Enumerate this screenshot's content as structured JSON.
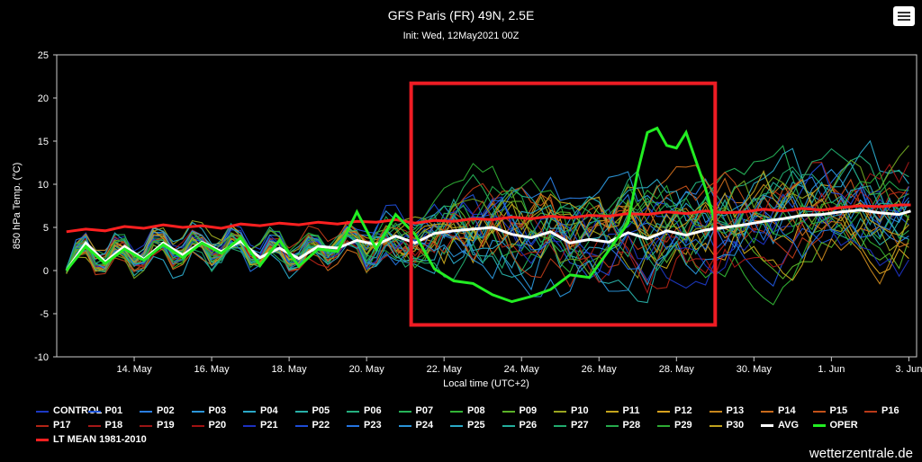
{
  "header": {
    "title": "GFS Paris (FR) 49N, 2.5E",
    "subtitle": "Init: Wed, 12May2021 00Z",
    "menu_icon": "hamburger-menu-icon"
  },
  "credit": "wetterzentrale.de",
  "chart_data": {
    "type": "line",
    "title": "GFS Paris (FR) 49N, 2.5E",
    "subtitle": "Init: Wed, 12May2021 00Z",
    "xlabel": "Local time (UTC+2)",
    "ylabel": "850 hPa Temp. (°C)",
    "xlim": [
      12.0,
      34.2
    ],
    "ylim": [
      -10,
      25
    ],
    "yticks": [
      -10,
      -5,
      0,
      5,
      10,
      15,
      20,
      25
    ],
    "xticks": [
      {
        "x": 14,
        "label": "14. May"
      },
      {
        "x": 16,
        "label": "16. May"
      },
      {
        "x": 18,
        "label": "18. May"
      },
      {
        "x": 20,
        "label": "20. May"
      },
      {
        "x": 22,
        "label": "22. May"
      },
      {
        "x": 24,
        "label": "24. May"
      },
      {
        "x": 26,
        "label": "26. May"
      },
      {
        "x": 28,
        "label": "28. May"
      },
      {
        "x": 30,
        "label": "30. May"
      },
      {
        "x": 32,
        "label": "1. Jun"
      },
      {
        "x": 34,
        "label": "3. Jun"
      }
    ],
    "grid": false,
    "legend_position": "bottom",
    "ensemble_colors": [
      "#1c39c4",
      "#1f54d6",
      "#2a7de0",
      "#2b96d8",
      "#2aa8c8",
      "#28b0a8",
      "#25b07f",
      "#26b358",
      "#32b335",
      "#5ab128",
      "#9aa520",
      "#c4a41c",
      "#d7a11f",
      "#c7861c",
      "#c86a1b",
      "#c35119",
      "#ba3a18",
      "#b22416",
      "#a51818",
      "#1c31c0",
      "#1d4cd6",
      "#2474e0",
      "#2a93d8",
      "#2aa9c6",
      "#22ad9c",
      "#21ab6e",
      "#25aa4c",
      "#2daa33",
      "#70a622",
      "#c0a21d"
    ],
    "series": [
      {
        "name": "CONTROL",
        "color": "#1c39c4"
      },
      {
        "name": "P01",
        "color": "#1f54d6"
      },
      {
        "name": "P02",
        "color": "#2a7de0"
      },
      {
        "name": "P03",
        "color": "#2b96d8"
      },
      {
        "name": "P04",
        "color": "#2aa8c8"
      },
      {
        "name": "P05",
        "color": "#28b0a8"
      },
      {
        "name": "P06",
        "color": "#25b07f"
      },
      {
        "name": "P07",
        "color": "#26b358"
      },
      {
        "name": "P08",
        "color": "#32b335"
      },
      {
        "name": "P09",
        "color": "#5ab128"
      },
      {
        "name": "P10",
        "color": "#9aa520"
      },
      {
        "name": "P11",
        "color": "#c4a41c"
      },
      {
        "name": "P12",
        "color": "#d7a11f"
      },
      {
        "name": "P13",
        "color": "#c7861c"
      },
      {
        "name": "P14",
        "color": "#c86a1b"
      },
      {
        "name": "P15",
        "color": "#c35119"
      },
      {
        "name": "P16",
        "color": "#ba3a18"
      },
      {
        "name": "P17",
        "color": "#b22416"
      },
      {
        "name": "P18",
        "color": "#a51818"
      },
      {
        "name": "P19",
        "color": "#9b1515"
      },
      {
        "name": "P20",
        "color": "#a01212"
      },
      {
        "name": "P21",
        "color": "#1c31c0"
      },
      {
        "name": "P22",
        "color": "#1d4cd6"
      },
      {
        "name": "P23",
        "color": "#2474e0"
      },
      {
        "name": "P24",
        "color": "#2a93d8"
      },
      {
        "name": "P25",
        "color": "#2aa9c6"
      },
      {
        "name": "P26",
        "color": "#22ad9c"
      },
      {
        "name": "P27",
        "color": "#21ab6e"
      },
      {
        "name": "P28",
        "color": "#25aa4c"
      },
      {
        "name": "P29",
        "color": "#2daa33"
      },
      {
        "name": "P30",
        "color": "#c0a21d"
      },
      {
        "name": "AVG",
        "color": "#ffffff"
      },
      {
        "name": "OPER",
        "color": "#22ee22"
      },
      {
        "name": "LT MEAN 1981-2010",
        "color": "#ff2020"
      }
    ],
    "key_series": {
      "oper": {
        "x": [
          12.25,
          12.75,
          13.25,
          13.75,
          14.25,
          14.75,
          15.25,
          15.75,
          16.25,
          16.75,
          17.25,
          17.75,
          18.25,
          18.75,
          19.25,
          19.75,
          20.25,
          20.75,
          21.25,
          21.75,
          22.25,
          22.75,
          23.25,
          23.75,
          24.25,
          24.75,
          25.25,
          25.75,
          26.25,
          26.75,
          27.0,
          27.25,
          27.5,
          27.75,
          28.0,
          28.25,
          28.75,
          29.0
        ],
        "y": [
          0,
          2.8,
          0.8,
          2.5,
          1.2,
          3.0,
          1.5,
          3.2,
          2.0,
          3.8,
          0.6,
          3.5,
          0.5,
          2.5,
          2.2,
          6.8,
          2.5,
          6.5,
          4.2,
          0.2,
          -1.2,
          -1.5,
          -2.8,
          -3.6,
          -3.0,
          -2.2,
          -0.5,
          -0.8,
          2.3,
          5.5,
          11.5,
          16.0,
          16.5,
          14.5,
          14.2,
          16.0,
          9.5,
          5.5
        ]
      },
      "avg": {
        "x": [
          12.25,
          12.75,
          13.25,
          13.75,
          14.25,
          14.75,
          15.25,
          15.75,
          16.25,
          16.75,
          17.25,
          17.75,
          18.25,
          18.75,
          19.25,
          19.75,
          20.25,
          20.75,
          21.25,
          21.75,
          22.25,
          22.75,
          23.25,
          23.75,
          24.25,
          24.75,
          25.25,
          25.75,
          26.25,
          26.75,
          27.25,
          27.75,
          28.25,
          28.75,
          29.25,
          29.75,
          30.25,
          30.75,
          31.25,
          31.75,
          32.25,
          32.75,
          33.25,
          33.75,
          34.05
        ],
        "y": [
          0,
          3.2,
          1.0,
          2.8,
          1.3,
          3.2,
          1.8,
          3.3,
          2.2,
          3.4,
          1.5,
          2.6,
          1.4,
          2.8,
          2.6,
          3.5,
          3.0,
          4.0,
          3.2,
          4.3,
          4.6,
          4.8,
          5.0,
          4.2,
          3.8,
          4.5,
          3.2,
          3.6,
          3.3,
          4.4,
          3.7,
          4.6,
          4.1,
          4.7,
          5.0,
          5.3,
          5.7,
          6.0,
          6.4,
          6.5,
          6.8,
          7.0,
          6.7,
          6.5,
          6.9
        ]
      },
      "lt_mean": {
        "x": [
          12.25,
          12.75,
          13.25,
          13.75,
          14.25,
          14.75,
          15.25,
          15.75,
          16.25,
          16.75,
          17.25,
          17.75,
          18.25,
          18.75,
          19.25,
          19.75,
          20.25,
          20.75,
          21.25,
          21.75,
          22.25,
          22.75,
          23.25,
          23.75,
          24.25,
          24.75,
          25.25,
          25.75,
          26.25,
          26.75,
          27.25,
          27.75,
          28.25,
          28.75,
          29.25,
          29.75,
          30.25,
          30.75,
          31.25,
          31.75,
          32.25,
          32.75,
          33.25,
          33.75,
          34.05
        ],
        "y": [
          4.5,
          4.8,
          4.6,
          5.1,
          4.9,
          5.3,
          5.0,
          5.2,
          4.9,
          5.4,
          5.2,
          5.5,
          5.3,
          5.6,
          5.4,
          5.7,
          5.6,
          5.9,
          5.5,
          5.8,
          5.7,
          6.0,
          5.9,
          6.2,
          6.0,
          6.3,
          6.1,
          6.4,
          6.3,
          6.6,
          6.5,
          6.8,
          6.6,
          6.9,
          6.7,
          6.8,
          7.1,
          6.9,
          7.2,
          7.0,
          7.3,
          7.5,
          7.4,
          7.6,
          7.6
        ]
      }
    },
    "annotation": {
      "type": "rectangle",
      "color": "#ee1c24",
      "x_range": [
        21.15,
        29.0
      ],
      "y_range": [
        -6.3,
        21.7
      ]
    }
  }
}
